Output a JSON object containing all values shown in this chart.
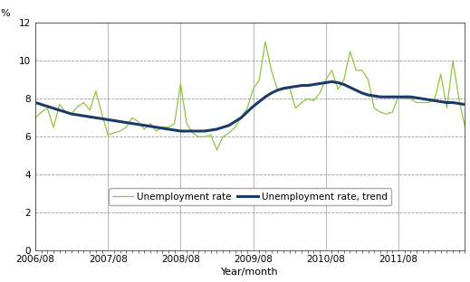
{
  "title": "",
  "ylabel": "%",
  "xlabel": "Year/month",
  "ylim": [
    0,
    12
  ],
  "yticks": [
    0,
    2,
    4,
    6,
    8,
    10,
    12
  ],
  "xtick_labels": [
    "2006/08",
    "2007/08",
    "2008/08",
    "2009/08",
    "2010/08",
    "2011/08"
  ],
  "unemployment_rate": [
    7.0,
    7.3,
    7.5,
    6.5,
    7.7,
    7.3,
    7.2,
    7.6,
    7.8,
    7.4,
    8.4,
    7.2,
    6.1,
    6.2,
    6.3,
    6.5,
    7.0,
    6.8,
    6.4,
    6.7,
    6.3,
    6.5,
    6.5,
    6.7,
    8.8,
    6.7,
    6.2,
    6.0,
    6.0,
    6.1,
    5.3,
    6.0,
    6.2,
    6.5,
    7.0,
    7.5,
    8.5,
    9.0,
    11.0,
    9.5,
    8.5,
    8.5,
    8.6,
    7.5,
    7.8,
    8.0,
    7.9,
    8.3,
    9.0,
    9.5,
    8.5,
    9.0,
    10.5,
    9.5,
    9.5,
    9.0,
    7.5,
    7.3,
    7.2,
    7.3,
    8.1,
    8.0,
    8.0,
    7.8,
    7.8,
    7.8,
    8.0,
    9.3,
    7.5,
    10.0,
    8.0,
    6.5
  ],
  "unemployment_trend": [
    7.8,
    7.7,
    7.6,
    7.5,
    7.4,
    7.3,
    7.2,
    7.15,
    7.1,
    7.05,
    7.0,
    6.95,
    6.9,
    6.85,
    6.8,
    6.75,
    6.7,
    6.65,
    6.6,
    6.55,
    6.5,
    6.45,
    6.4,
    6.35,
    6.3,
    6.3,
    6.3,
    6.3,
    6.3,
    6.35,
    6.4,
    6.5,
    6.6,
    6.8,
    7.0,
    7.3,
    7.6,
    7.85,
    8.1,
    8.3,
    8.45,
    8.55,
    8.6,
    8.65,
    8.7,
    8.7,
    8.75,
    8.8,
    8.85,
    8.9,
    8.85,
    8.75,
    8.6,
    8.45,
    8.3,
    8.2,
    8.15,
    8.1,
    8.1,
    8.1,
    8.1,
    8.1,
    8.1,
    8.05,
    8.0,
    7.95,
    7.9,
    7.85,
    7.8,
    7.8,
    7.75,
    7.7
  ],
  "rate_color": "#8dc63f",
  "trend_color": "#1a3a6b",
  "bg_color": "#ffffff",
  "grid_color_h": "#999999",
  "grid_color_v": "#aaaaaa",
  "n_months": 72,
  "start_year": 2006,
  "start_month": 8
}
